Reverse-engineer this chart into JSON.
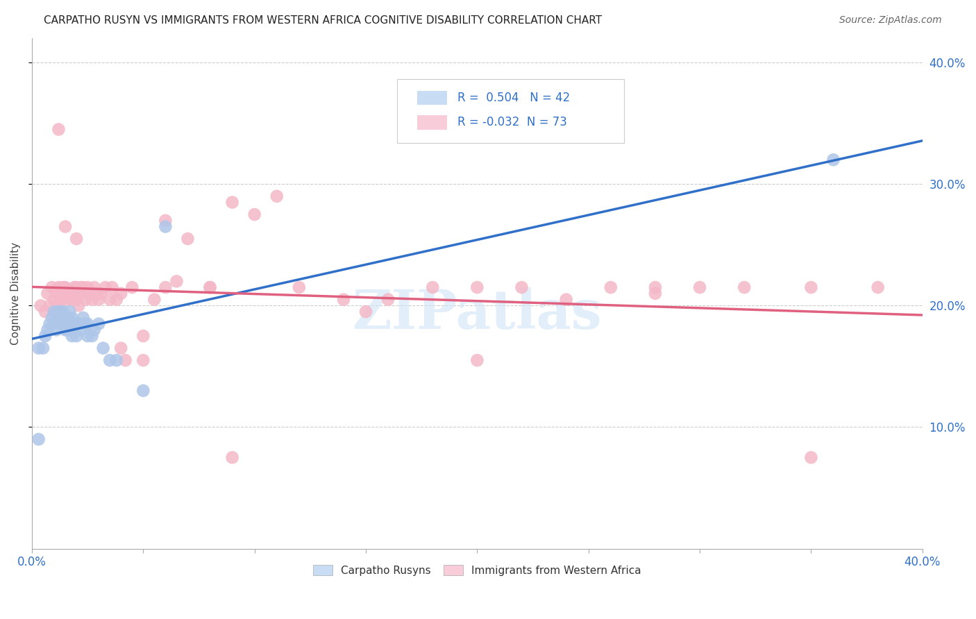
{
  "title": "CARPATHO RUSYN VS IMMIGRANTS FROM WESTERN AFRICA COGNITIVE DISABILITY CORRELATION CHART",
  "source": "Source: ZipAtlas.com",
  "ylabel": "Cognitive Disability",
  "xlim": [
    0.0,
    0.4
  ],
  "ylim": [
    0.0,
    0.42
  ],
  "xticks": [
    0.0,
    0.05,
    0.1,
    0.15,
    0.2,
    0.25,
    0.3,
    0.35,
    0.4
  ],
  "ytick_vals": [
    0.1,
    0.2,
    0.3,
    0.4
  ],
  "ytick_labels": [
    "10.0%",
    "20.0%",
    "30.0%",
    "40.0%"
  ],
  "R_blue": 0.504,
  "N_blue": 42,
  "R_pink": -0.032,
  "N_pink": 73,
  "blue_color": "#aec6e8",
  "blue_line_color": "#3070c8",
  "pink_color": "#f4b8c8",
  "pink_line_color": "#e06080",
  "legend_box_blue": "#c8dcf4",
  "legend_box_pink": "#f8ccd8",
  "watermark": "ZIPatlas",
  "blue_scatter_x": [
    0.003,
    0.005,
    0.006,
    0.007,
    0.008,
    0.009,
    0.01,
    0.01,
    0.011,
    0.012,
    0.012,
    0.013,
    0.013,
    0.014,
    0.014,
    0.015,
    0.015,
    0.016,
    0.016,
    0.017,
    0.017,
    0.018,
    0.018,
    0.019,
    0.02,
    0.02,
    0.021,
    0.022,
    0.023,
    0.024,
    0.025,
    0.025,
    0.027,
    0.028,
    0.03,
    0.032,
    0.035,
    0.038,
    0.05,
    0.06,
    0.36,
    0.003
  ],
  "blue_scatter_y": [
    0.165,
    0.165,
    0.175,
    0.18,
    0.185,
    0.19,
    0.185,
    0.195,
    0.18,
    0.19,
    0.195,
    0.185,
    0.195,
    0.19,
    0.195,
    0.185,
    0.18,
    0.18,
    0.19,
    0.185,
    0.195,
    0.19,
    0.175,
    0.185,
    0.185,
    0.175,
    0.185,
    0.18,
    0.19,
    0.185,
    0.175,
    0.185,
    0.175,
    0.18,
    0.185,
    0.165,
    0.155,
    0.155,
    0.13,
    0.265,
    0.32,
    0.09
  ],
  "pink_scatter_x": [
    0.004,
    0.006,
    0.007,
    0.008,
    0.009,
    0.01,
    0.011,
    0.012,
    0.012,
    0.013,
    0.014,
    0.015,
    0.015,
    0.016,
    0.017,
    0.018,
    0.018,
    0.019,
    0.02,
    0.02,
    0.021,
    0.022,
    0.022,
    0.023,
    0.024,
    0.025,
    0.026,
    0.027,
    0.028,
    0.029,
    0.03,
    0.031,
    0.033,
    0.035,
    0.036,
    0.038,
    0.04,
    0.042,
    0.045,
    0.05,
    0.055,
    0.06,
    0.065,
    0.07,
    0.08,
    0.09,
    0.1,
    0.11,
    0.12,
    0.14,
    0.16,
    0.18,
    0.2,
    0.22,
    0.24,
    0.26,
    0.28,
    0.3,
    0.32,
    0.35,
    0.38,
    0.012,
    0.015,
    0.02,
    0.05,
    0.09,
    0.15,
    0.2,
    0.28,
    0.35,
    0.04,
    0.06,
    0.08
  ],
  "pink_scatter_y": [
    0.2,
    0.195,
    0.21,
    0.2,
    0.215,
    0.205,
    0.21,
    0.2,
    0.215,
    0.205,
    0.215,
    0.21,
    0.215,
    0.205,
    0.21,
    0.21,
    0.205,
    0.215,
    0.205,
    0.215,
    0.2,
    0.215,
    0.21,
    0.215,
    0.205,
    0.215,
    0.21,
    0.205,
    0.215,
    0.21,
    0.205,
    0.21,
    0.215,
    0.205,
    0.215,
    0.205,
    0.165,
    0.155,
    0.215,
    0.155,
    0.205,
    0.27,
    0.22,
    0.255,
    0.215,
    0.285,
    0.275,
    0.29,
    0.215,
    0.205,
    0.205,
    0.215,
    0.215,
    0.215,
    0.205,
    0.215,
    0.215,
    0.215,
    0.215,
    0.215,
    0.215,
    0.345,
    0.265,
    0.255,
    0.175,
    0.075,
    0.195,
    0.155,
    0.21,
    0.075,
    0.21,
    0.215,
    0.215
  ]
}
